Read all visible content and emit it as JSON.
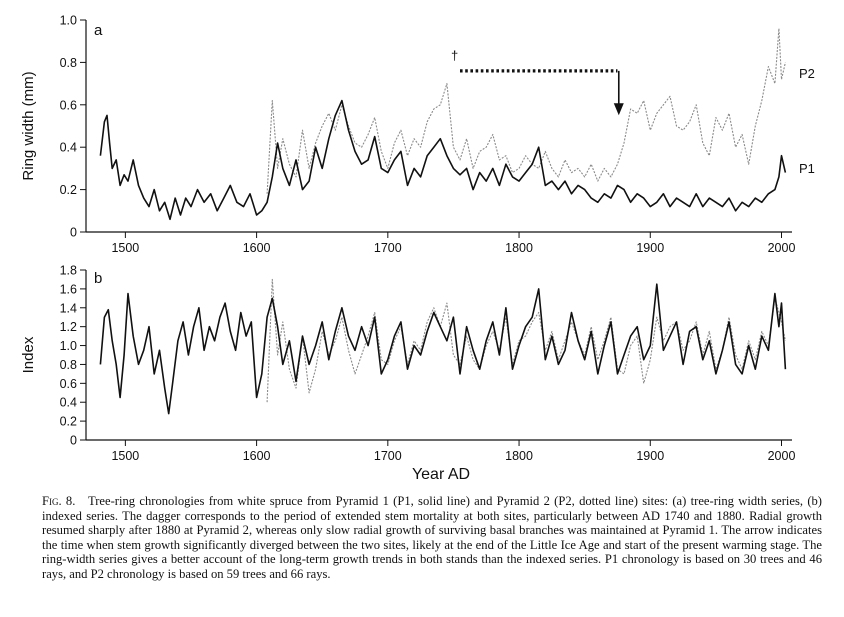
{
  "figure": {
    "label": "Fig. 8.",
    "caption": "Tree-ring chronologies from white spruce from Pyramid 1 (P1, solid line) and Pyramid 2 (P2, dotted line) sites: (a) tree-ring width series, (b) indexed series. The dagger corresponds to the period of extended stem mortality at both sites, particularly between AD 1740 and 1880. Radial growth resumed sharply after 1880 at Pyramid 2, whereas only slow radial growth of surviving basal branches was maintained at Pyramid 1. The arrow indicates the time when stem growth significantly diverged between the two sites, likely at the end of the Little Ice Age and start of the present warming stage. The ring-width series gives a better account of the long-term growth trends in both stands than the indexed series. P1 chronology is based on 30 trees and 46 rays, and P2 chronology is based on 59 trees and 66 rays."
  },
  "chart_data": [
    {
      "type": "line",
      "panel_label": "a",
      "ylabel": "Ring width (mm)",
      "xlabel": "",
      "xlim": [
        1470,
        2008
      ],
      "ylim": [
        0,
        1.0
      ],
      "xticks": [
        1500,
        1600,
        1700,
        1800,
        1900,
        2000
      ],
      "yticks": [
        "0",
        "0.2",
        "0.4",
        "0.6",
        "0.8",
        "1.0"
      ],
      "series": [
        {
          "name": "P1",
          "style": "solid",
          "color": "#111111",
          "x": [
            1481,
            1484,
            1486,
            1488,
            1490,
            1493,
            1496,
            1499,
            1502,
            1506,
            1510,
            1514,
            1518,
            1522,
            1526,
            1530,
            1534,
            1538,
            1542,
            1546,
            1550,
            1555,
            1560,
            1565,
            1570,
            1575,
            1580,
            1585,
            1590,
            1595,
            1600,
            1604,
            1608,
            1612,
            1616,
            1620,
            1625,
            1630,
            1635,
            1640,
            1645,
            1650,
            1655,
            1660,
            1665,
            1670,
            1675,
            1680,
            1685,
            1690,
            1695,
            1700,
            1705,
            1710,
            1715,
            1720,
            1725,
            1730,
            1735,
            1740,
            1745,
            1750,
            1755,
            1760,
            1765,
            1770,
            1775,
            1780,
            1785,
            1790,
            1795,
            1800,
            1805,
            1810,
            1815,
            1820,
            1825,
            1830,
            1835,
            1840,
            1845,
            1850,
            1855,
            1860,
            1865,
            1870,
            1875,
            1880,
            1885,
            1890,
            1895,
            1900,
            1905,
            1910,
            1915,
            1920,
            1925,
            1930,
            1935,
            1940,
            1945,
            1950,
            1955,
            1960,
            1965,
            1970,
            1975,
            1980,
            1985,
            1990,
            1995,
            1998,
            2000,
            2003
          ],
          "y": [
            0.36,
            0.52,
            0.55,
            0.42,
            0.3,
            0.34,
            0.22,
            0.27,
            0.24,
            0.34,
            0.22,
            0.16,
            0.12,
            0.2,
            0.1,
            0.14,
            0.06,
            0.16,
            0.08,
            0.16,
            0.12,
            0.2,
            0.14,
            0.18,
            0.1,
            0.16,
            0.22,
            0.14,
            0.12,
            0.18,
            0.08,
            0.1,
            0.14,
            0.26,
            0.42,
            0.3,
            0.22,
            0.34,
            0.2,
            0.24,
            0.4,
            0.3,
            0.44,
            0.55,
            0.62,
            0.48,
            0.38,
            0.32,
            0.34,
            0.45,
            0.3,
            0.28,
            0.34,
            0.38,
            0.22,
            0.3,
            0.26,
            0.36,
            0.4,
            0.44,
            0.36,
            0.3,
            0.27,
            0.3,
            0.2,
            0.28,
            0.24,
            0.3,
            0.22,
            0.32,
            0.26,
            0.24,
            0.28,
            0.32,
            0.4,
            0.22,
            0.24,
            0.2,
            0.24,
            0.18,
            0.22,
            0.2,
            0.16,
            0.14,
            0.18,
            0.16,
            0.22,
            0.2,
            0.14,
            0.18,
            0.16,
            0.12,
            0.14,
            0.18,
            0.12,
            0.16,
            0.14,
            0.12,
            0.18,
            0.12,
            0.16,
            0.14,
            0.12,
            0.16,
            0.1,
            0.14,
            0.12,
            0.16,
            0.14,
            0.18,
            0.2,
            0.26,
            0.36,
            0.28
          ]
        },
        {
          "name": "P2",
          "style": "dotted",
          "color": "#8a8a8a",
          "x": [
            1608,
            1612,
            1616,
            1620,
            1625,
            1630,
            1635,
            1640,
            1645,
            1650,
            1655,
            1660,
            1665,
            1670,
            1675,
            1680,
            1685,
            1690,
            1695,
            1700,
            1705,
            1710,
            1715,
            1720,
            1725,
            1730,
            1735,
            1740,
            1745,
            1750,
            1755,
            1760,
            1765,
            1770,
            1775,
            1780,
            1785,
            1790,
            1795,
            1800,
            1805,
            1810,
            1815,
            1820,
            1825,
            1830,
            1835,
            1840,
            1845,
            1850,
            1855,
            1860,
            1865,
            1870,
            1875,
            1880,
            1885,
            1890,
            1895,
            1900,
            1905,
            1910,
            1915,
            1920,
            1925,
            1930,
            1935,
            1940,
            1945,
            1950,
            1955,
            1960,
            1965,
            1970,
            1975,
            1980,
            1985,
            1990,
            1995,
            1998,
            2000,
            2003
          ],
          "y": [
            0.18,
            0.62,
            0.3,
            0.44,
            0.32,
            0.26,
            0.48,
            0.3,
            0.42,
            0.5,
            0.56,
            0.48,
            0.6,
            0.5,
            0.42,
            0.4,
            0.46,
            0.54,
            0.38,
            0.3,
            0.42,
            0.48,
            0.36,
            0.44,
            0.4,
            0.52,
            0.58,
            0.6,
            0.7,
            0.4,
            0.34,
            0.44,
            0.3,
            0.38,
            0.4,
            0.46,
            0.34,
            0.36,
            0.28,
            0.3,
            0.36,
            0.32,
            0.3,
            0.38,
            0.3,
            0.26,
            0.34,
            0.28,
            0.3,
            0.26,
            0.32,
            0.24,
            0.3,
            0.26,
            0.32,
            0.42,
            0.58,
            0.56,
            0.62,
            0.48,
            0.56,
            0.6,
            0.64,
            0.5,
            0.48,
            0.52,
            0.6,
            0.42,
            0.36,
            0.54,
            0.48,
            0.56,
            0.4,
            0.46,
            0.32,
            0.5,
            0.62,
            0.78,
            0.7,
            0.96,
            0.72,
            0.8
          ]
        }
      ],
      "annotations": [
        {
          "text": "†",
          "meaning": "dagger"
        },
        {
          "text": "",
          "meaning": "dotted mortality bar",
          "x_range": [
            1755,
            1875
          ],
          "y": 0.76
        },
        {
          "text": "",
          "meaning": "arrow",
          "x": 1876,
          "y_from": 0.76,
          "y_to": 0.56
        }
      ]
    },
    {
      "type": "line",
      "panel_label": "b",
      "ylabel": "Index",
      "xlabel": "Year AD",
      "xlim": [
        1470,
        2008
      ],
      "ylim": [
        0,
        1.8
      ],
      "xticks": [
        1500,
        1600,
        1700,
        1800,
        1900,
        2000
      ],
      "yticks": [
        "0",
        "0.2",
        "0.4",
        "0.6",
        "0.8",
        "1.0",
        "1.2",
        "1.4",
        "1.6",
        "1.8"
      ],
      "series": [
        {
          "name": "P1",
          "style": "solid",
          "color": "#111111",
          "x": [
            1481,
            1484,
            1487,
            1490,
            1493,
            1496,
            1499,
            1502,
            1506,
            1510,
            1514,
            1518,
            1522,
            1526,
            1530,
            1533,
            1536,
            1540,
            1544,
            1548,
            1552,
            1556,
            1560,
            1564,
            1568,
            1572,
            1576,
            1580,
            1584,
            1588,
            1592,
            1596,
            1600,
            1604,
            1608,
            1612,
            1616,
            1620,
            1625,
            1630,
            1635,
            1640,
            1645,
            1650,
            1655,
            1660,
            1665,
            1670,
            1675,
            1680,
            1685,
            1690,
            1695,
            1700,
            1705,
            1710,
            1715,
            1720,
            1725,
            1730,
            1735,
            1740,
            1745,
            1750,
            1755,
            1760,
            1765,
            1770,
            1775,
            1780,
            1785,
            1790,
            1795,
            1800,
            1805,
            1810,
            1815,
            1820,
            1825,
            1830,
            1835,
            1840,
            1845,
            1850,
            1855,
            1860,
            1865,
            1870,
            1875,
            1880,
            1885,
            1890,
            1895,
            1900,
            1905,
            1910,
            1915,
            1920,
            1925,
            1930,
            1935,
            1940,
            1945,
            1950,
            1955,
            1960,
            1965,
            1970,
            1975,
            1980,
            1985,
            1990,
            1995,
            1998,
            2000,
            2003
          ],
          "y": [
            0.8,
            1.3,
            1.38,
            1.05,
            0.8,
            0.45,
            0.9,
            1.55,
            1.1,
            0.8,
            0.95,
            1.2,
            0.7,
            0.95,
            0.55,
            0.28,
            0.6,
            1.05,
            1.25,
            0.9,
            1.2,
            1.4,
            0.95,
            1.2,
            1.05,
            1.3,
            1.45,
            1.15,
            0.95,
            1.35,
            1.1,
            1.25,
            0.45,
            0.7,
            1.3,
            1.5,
            1.2,
            0.8,
            1.05,
            0.62,
            1.1,
            0.8,
            1.0,
            1.25,
            0.85,
            1.15,
            1.4,
            1.1,
            0.95,
            1.2,
            1.0,
            1.3,
            0.7,
            0.85,
            1.1,
            1.25,
            0.75,
            1.0,
            0.9,
            1.15,
            1.35,
            1.2,
            1.05,
            1.3,
            0.7,
            1.2,
            0.95,
            0.75,
            1.05,
            1.25,
            0.9,
            1.4,
            0.75,
            1.0,
            1.2,
            1.3,
            1.6,
            0.85,
            1.1,
            0.8,
            0.95,
            1.35,
            1.05,
            0.85,
            1.15,
            0.7,
            1.0,
            1.25,
            0.7,
            0.9,
            1.1,
            1.2,
            0.85,
            1.0,
            1.65,
            0.95,
            1.1,
            1.25,
            0.8,
            1.15,
            1.2,
            0.85,
            1.05,
            0.7,
            0.95,
            1.25,
            0.8,
            0.7,
            1.0,
            0.75,
            1.1,
            0.95,
            1.55,
            1.2,
            1.45,
            0.75
          ]
        },
        {
          "name": "P2",
          "style": "dotted",
          "color": "#8a8a8a",
          "x": [
            1608,
            1612,
            1616,
            1620,
            1625,
            1630,
            1635,
            1640,
            1645,
            1650,
            1655,
            1660,
            1665,
            1670,
            1675,
            1680,
            1685,
            1690,
            1695,
            1700,
            1705,
            1710,
            1715,
            1720,
            1725,
            1730,
            1735,
            1740,
            1745,
            1750,
            1755,
            1760,
            1765,
            1770,
            1775,
            1780,
            1785,
            1790,
            1795,
            1800,
            1805,
            1810,
            1815,
            1820,
            1825,
            1830,
            1835,
            1840,
            1845,
            1850,
            1855,
            1860,
            1865,
            1870,
            1875,
            1880,
            1885,
            1890,
            1895,
            1900,
            1905,
            1910,
            1915,
            1920,
            1925,
            1930,
            1935,
            1940,
            1945,
            1950,
            1955,
            1960,
            1965,
            1970,
            1975,
            1980,
            1985,
            1990,
            1995,
            1998,
            2000,
            2003
          ],
          "y": [
            0.4,
            1.7,
            0.9,
            1.25,
            0.75,
            0.55,
            1.1,
            0.5,
            0.75,
            1.15,
            0.9,
            1.05,
            1.3,
            0.95,
            0.7,
            0.9,
            1.1,
            1.35,
            0.85,
            0.8,
            1.05,
            1.2,
            0.8,
            1.05,
            0.95,
            1.25,
            1.4,
            1.2,
            1.45,
            0.9,
            0.8,
            1.1,
            0.85,
            0.75,
            1.0,
            1.15,
            0.95,
            1.3,
            0.8,
            1.05,
            1.1,
            1.25,
            1.35,
            0.95,
            1.15,
            0.85,
            1.05,
            1.25,
            1.05,
            0.9,
            1.2,
            0.85,
            1.05,
            1.3,
            0.75,
            0.7,
            1.0,
            1.1,
            0.6,
            0.85,
            1.3,
            1.05,
            1.2,
            1.25,
            0.95,
            1.05,
            1.25,
            0.9,
            1.15,
            0.75,
            0.95,
            1.3,
            0.9,
            0.75,
            1.05,
            0.85,
            1.15,
            1.0,
            1.5,
            1.35,
            1.25,
            1.05
          ]
        }
      ]
    }
  ]
}
